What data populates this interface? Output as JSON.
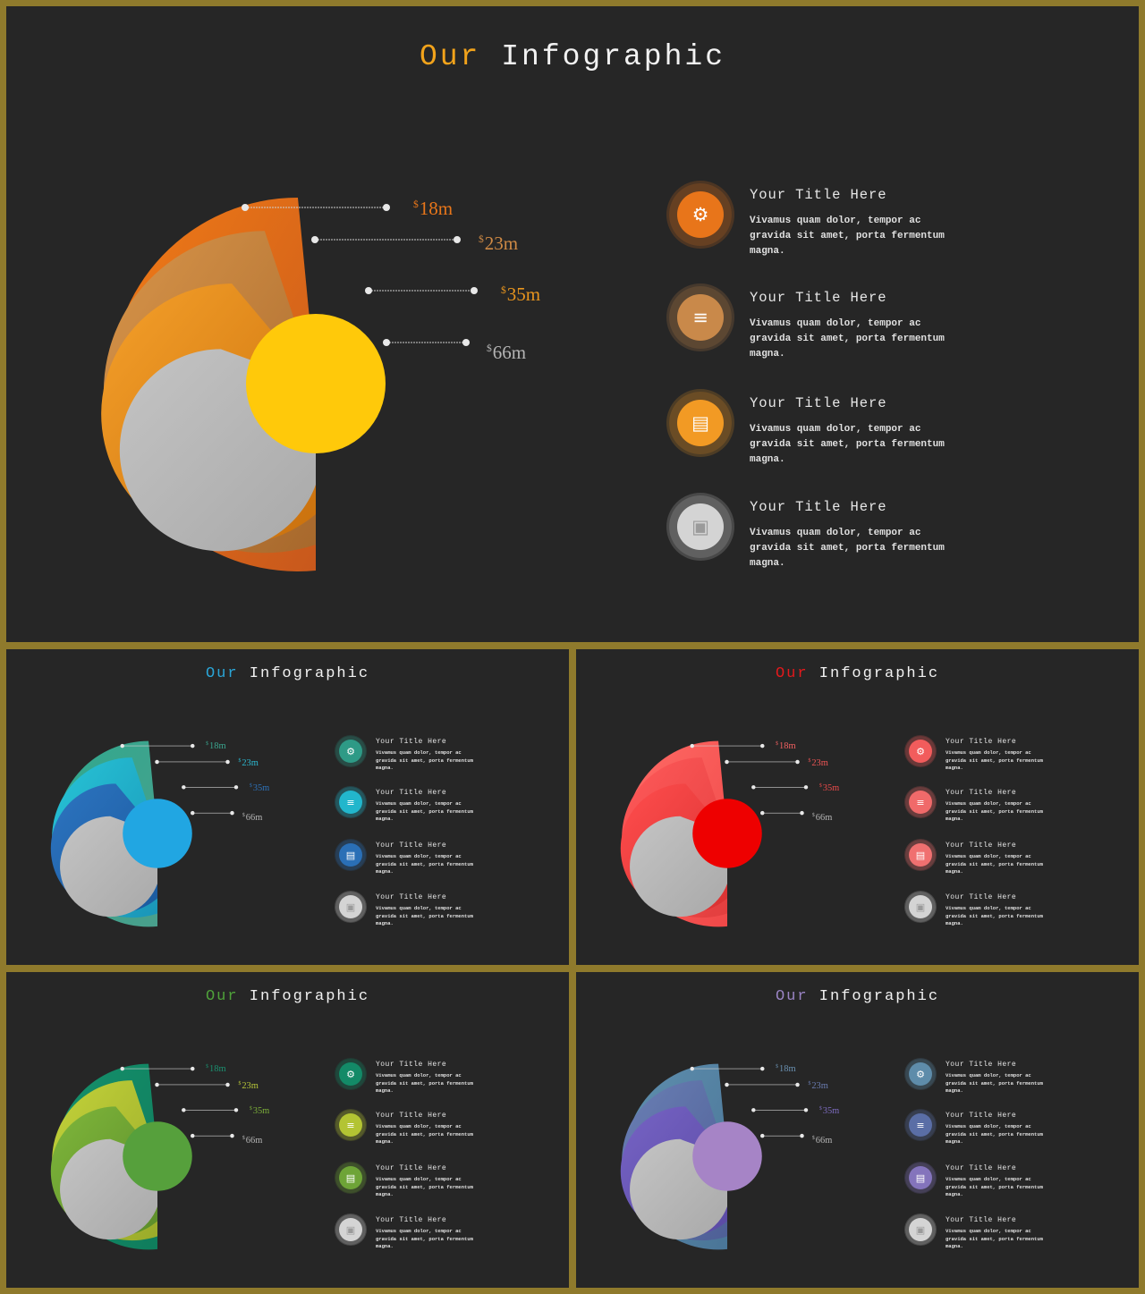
{
  "slides": [
    {
      "title_accent": "Our",
      "title_rest": "Infographic",
      "accent_color": "#f2a31b",
      "rings": [
        {
          "currency": "$",
          "value": "18m",
          "gradient": [
            "#f07b16",
            "#c8581c"
          ],
          "label_color": "#e8761a"
        },
        {
          "currency": "$",
          "value": "23m",
          "gradient": [
            "#d8954a",
            "#a7682c"
          ],
          "label_color": "#cf8a45"
        },
        {
          "currency": "$",
          "value": "35m",
          "gradient": [
            "#f5a02a",
            "#c9700d"
          ],
          "label_color": "#e8951e"
        },
        {
          "currency": "$",
          "value": "66m",
          "gradient": [
            "#c4c4c4",
            "#a9a9a9"
          ],
          "label_color": "#b5b5b5"
        }
      ],
      "center_color": "#ffc90a",
      "items": [
        {
          "icon": "gear-icon",
          "color": "#e8751a",
          "title": "Your Title Here",
          "body": [
            "Vivamus quam dolor, tempor ac",
            "gravida sit amet, porta fermentum",
            "magna."
          ]
        },
        {
          "icon": "wifi-icon",
          "color": "#c9894a",
          "title": "Your Title Here",
          "body": [
            "Vivamus quam dolor, tempor ac",
            "gravida sit amet, porta fermentum",
            "magna."
          ]
        },
        {
          "icon": "clipboard-icon",
          "color": "#f29a24",
          "title": "Your Title Here",
          "body": [
            "Vivamus quam dolor, tempor ac",
            "gravida sit amet, porta fermentum",
            "magna."
          ]
        },
        {
          "icon": "lock-icon",
          "color": "#d4d4d4",
          "title": "Your Title Here",
          "body": [
            "Vivamus quam dolor, tempor ac",
            "gravida sit amet, porta fermentum",
            "magna."
          ]
        }
      ]
    },
    {
      "title_accent": "Our",
      "title_rest": "Infographic",
      "accent_color": "#2aa6d8",
      "rings": [
        {
          "currency": "$",
          "value": "18m",
          "gradient": [
            "#2fa98e",
            "#4a9f8c"
          ],
          "label_color": "#3aa58e"
        },
        {
          "currency": "$",
          "value": "23m",
          "gradient": [
            "#27c4d6",
            "#1a95b8"
          ],
          "label_color": "#2bb8d0"
        },
        {
          "currency": "$",
          "value": "35m",
          "gradient": [
            "#2d74c0",
            "#1a5a9e"
          ],
          "label_color": "#2e72b8"
        },
        {
          "currency": "$",
          "value": "66m",
          "gradient": [
            "#c4c4c4",
            "#a9a9a9"
          ],
          "label_color": "#b5b5b5"
        }
      ],
      "center_color": "#21a6e2",
      "items": [
        {
          "icon": "gear-icon",
          "color": "#2e9a86",
          "title": "Your Title Here",
          "body": [
            "Vivamus quam dolor, tempor ac",
            "gravida sit amet, porta fermentum",
            "magna."
          ]
        },
        {
          "icon": "wifi-icon",
          "color": "#22b6cc",
          "title": "Your Title Here",
          "body": [
            "Vivamus quam dolor, tempor ac",
            "gravida sit amet, porta fermentum",
            "magna."
          ]
        },
        {
          "icon": "clipboard-icon",
          "color": "#2a6fb6",
          "title": "Your Title Here",
          "body": [
            "Vivamus quam dolor, tempor ac",
            "gravida sit amet, porta fermentum",
            "magna."
          ]
        },
        {
          "icon": "lock-icon",
          "color": "#d4d4d4",
          "title": "Your Title Here",
          "body": [
            "Vivamus quam dolor, tempor ac",
            "gravida sit amet, porta fermentum",
            "magna."
          ]
        }
      ]
    },
    {
      "title_accent": "Our",
      "title_rest": "Infographic",
      "accent_color": "#e3191c",
      "rings": [
        {
          "currency": "$",
          "value": "18m",
          "gradient": [
            "#ff6b66",
            "#f04848"
          ],
          "label_color": "#f06060"
        },
        {
          "currency": "$",
          "value": "23m",
          "gradient": [
            "#ff5a5a",
            "#e23e3e"
          ],
          "label_color": "#ef5555"
        },
        {
          "currency": "$",
          "value": "35m",
          "gradient": [
            "#ff4d4d",
            "#d83232"
          ],
          "label_color": "#ec4b4b"
        },
        {
          "currency": "$",
          "value": "66m",
          "gradient": [
            "#c4c4c4",
            "#a9a9a9"
          ],
          "label_color": "#b5b5b5"
        }
      ],
      "center_color": "#ee0000",
      "items": [
        {
          "icon": "gear-icon",
          "color": "#f25c5c",
          "title": "Your Title Here",
          "body": [
            "Vivamus quam dolor, tempor ac",
            "gravida sit amet, porta fermentum",
            "magna."
          ]
        },
        {
          "icon": "wifi-icon",
          "color": "#f06a6a",
          "title": "Your Title Here",
          "body": [
            "Vivamus quam dolor, tempor ac",
            "gravida sit amet, porta fermentum",
            "magna."
          ]
        },
        {
          "icon": "clipboard-icon",
          "color": "#f07070",
          "title": "Your Title Here",
          "body": [
            "Vivamus quam dolor, tempor ac",
            "gravida sit amet, porta fermentum",
            "magna."
          ]
        },
        {
          "icon": "lock-icon",
          "color": "#d4d4d4",
          "title": "Your Title Here",
          "body": [
            "Vivamus quam dolor, tempor ac",
            "gravida sit amet, porta fermentum",
            "magna."
          ]
        }
      ]
    },
    {
      "title_accent": "Our",
      "title_rest": "Infographic",
      "accent_color": "#4fa23a",
      "rings": [
        {
          "currency": "$",
          "value": "18m",
          "gradient": [
            "#15906c",
            "#0f7d5c"
          ],
          "label_color": "#1b9070"
        },
        {
          "currency": "$",
          "value": "23m",
          "gradient": [
            "#c3d23a",
            "#9aab2a"
          ],
          "label_color": "#b5c439"
        },
        {
          "currency": "$",
          "value": "35m",
          "gradient": [
            "#7fb63b",
            "#5c8d2a"
          ],
          "label_color": "#7caf3a"
        },
        {
          "currency": "$",
          "value": "66m",
          "gradient": [
            "#c4c4c4",
            "#a9a9a9"
          ],
          "label_color": "#b5b5b5"
        }
      ],
      "center_color": "#56a03c",
      "items": [
        {
          "icon": "gear-icon",
          "color": "#138a67",
          "title": "Your Title Here",
          "body": [
            "Vivamus quam dolor, tempor ac",
            "gravida sit amet, porta fermentum",
            "magna."
          ]
        },
        {
          "icon": "wifi-icon",
          "color": "#b3c433",
          "title": "Your Title Here",
          "body": [
            "Vivamus quam dolor, tempor ac",
            "gravida sit amet, porta fermentum",
            "magna."
          ]
        },
        {
          "icon": "clipboard-icon",
          "color": "#6ea437",
          "title": "Your Title Here",
          "body": [
            "Vivamus quam dolor, tempor ac",
            "gravida sit amet, porta fermentum",
            "magna."
          ]
        },
        {
          "icon": "lock-icon",
          "color": "#d4d4d4",
          "title": "Your Title Here",
          "body": [
            "Vivamus quam dolor, tempor ac",
            "gravida sit amet, porta fermentum",
            "magna."
          ]
        }
      ]
    },
    {
      "title_accent": "Our",
      "title_rest": "Infographic",
      "accent_color": "#9a84c4",
      "rings": [
        {
          "currency": "$",
          "value": "18m",
          "gradient": [
            "#5f8fae",
            "#4a7597"
          ],
          "label_color": "#6a90b0"
        },
        {
          "currency": "$",
          "value": "23m",
          "gradient": [
            "#6a7fb4",
            "#4e5f96"
          ],
          "label_color": "#6a7cb0"
        },
        {
          "currency": "$",
          "value": "35m",
          "gradient": [
            "#7663c4",
            "#5a4aa4"
          ],
          "label_color": "#7d6cc0"
        },
        {
          "currency": "$",
          "value": "66m",
          "gradient": [
            "#c4c4c4",
            "#a9a9a9"
          ],
          "label_color": "#b5b5b5"
        }
      ],
      "center_color": "#a684c6",
      "items": [
        {
          "icon": "gear-icon",
          "color": "#5e8caa",
          "title": "Your Title Here",
          "body": [
            "Vivamus quam dolor, tempor ac",
            "gravida sit amet, porta fermentum",
            "magna."
          ]
        },
        {
          "icon": "wifi-icon",
          "color": "#5a6ea6",
          "title": "Your Title Here",
          "body": [
            "Vivamus quam dolor, tempor ac",
            "gravida sit amet, porta fermentum",
            "magna."
          ]
        },
        {
          "icon": "clipboard-icon",
          "color": "#8474bc",
          "title": "Your Title Here",
          "body": [
            "Vivamus quam dolor, tempor ac",
            "gravida sit amet, porta fermentum",
            "magna."
          ]
        },
        {
          "icon": "lock-icon",
          "color": "#d4d4d4",
          "title": "Your Title Here",
          "body": [
            "Vivamus quam dolor, tempor ac",
            "gravida sit amet, porta fermentum",
            "magna."
          ]
        }
      ]
    }
  ]
}
